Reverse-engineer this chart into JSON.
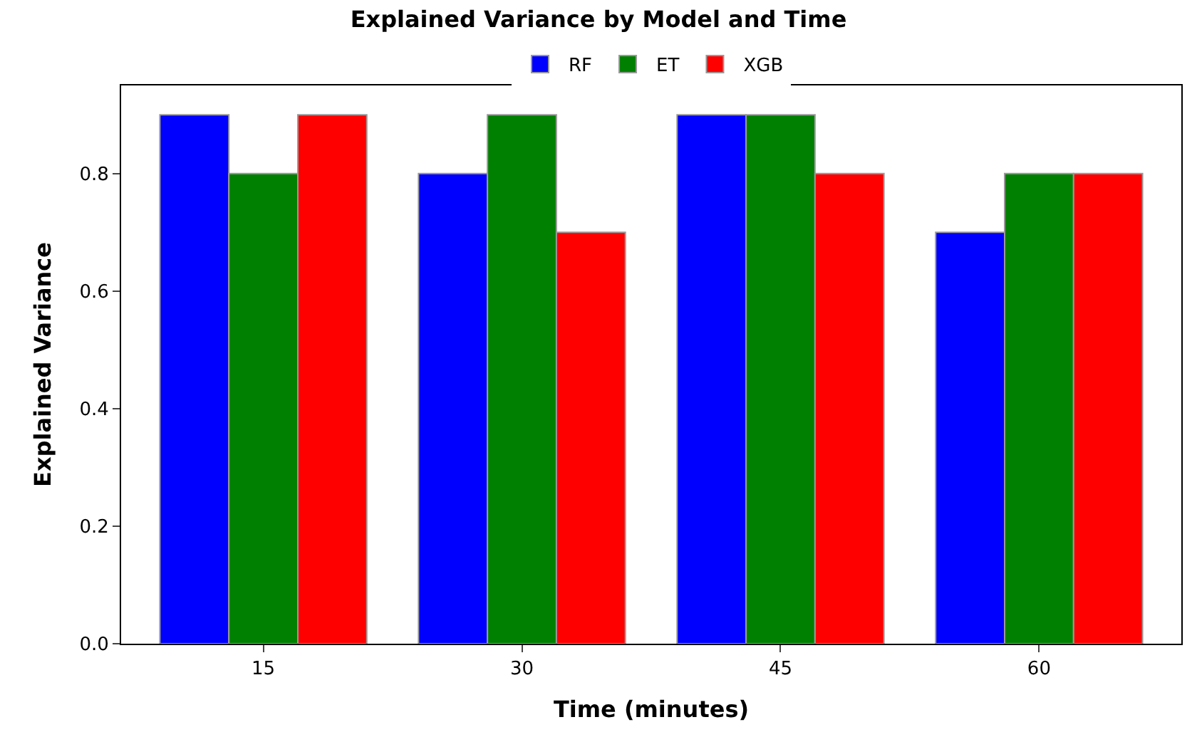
{
  "chart_data": {
    "type": "bar",
    "title": "Explained Variance by Model and Time",
    "xlabel": "Time (minutes)",
    "ylabel": "Explained Variance",
    "categories": [
      "15",
      "30",
      "45",
      "60"
    ],
    "series": [
      {
        "name": "RF",
        "color": "#0000ff",
        "values": [
          0.9,
          0.8,
          0.9,
          0.7
        ]
      },
      {
        "name": "ET",
        "color": "#008000",
        "values": [
          0.8,
          0.9,
          0.9,
          0.8
        ]
      },
      {
        "name": "XGB",
        "color": "#ff0000",
        "values": [
          0.9,
          0.7,
          0.8,
          0.8
        ]
      }
    ],
    "ylim": [
      0,
      0.95
    ],
    "yticks": [
      {
        "value": 0,
        "label": "0.0"
      },
      0.2,
      0.4,
      0.6,
      0.8
    ],
    "legend": "top"
  }
}
